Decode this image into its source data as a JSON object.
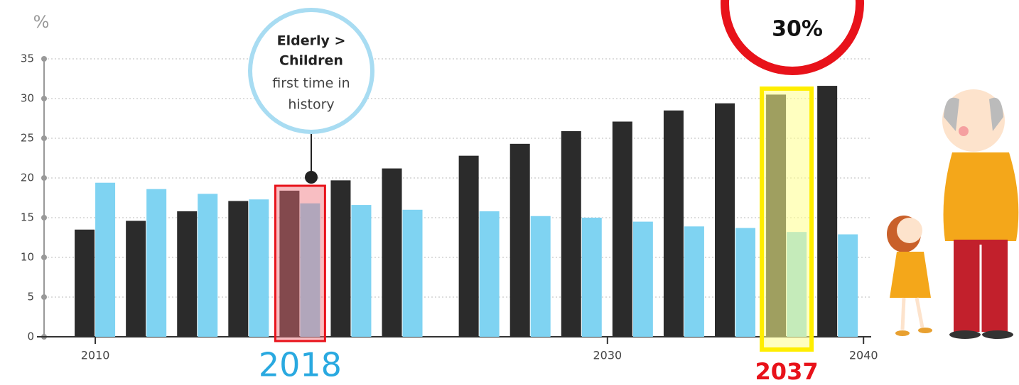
{
  "chart_data": {
    "type": "bar",
    "y_label": "%",
    "x": [
      2010,
      2012,
      2014,
      2016,
      2018,
      2020,
      2022,
      2025,
      2027,
      2029,
      2031,
      2033,
      2035,
      2037,
      2039
    ],
    "series": [
      {
        "color": "#2b2b2b",
        "values": [
          13.5,
          14.6,
          15.8,
          17.1,
          18.4,
          19.7,
          21.2,
          22.8,
          24.3,
          25.9,
          27.1,
          28.5,
          29.4,
          30.5,
          31.6
        ]
      },
      {
        "color": "#7fd3f2",
        "values": [
          19.4,
          18.6,
          18.0,
          17.3,
          16.8,
          16.6,
          16.0,
          15.8,
          15.2,
          15.0,
          14.5,
          13.9,
          13.7,
          13.2,
          12.9
        ]
      }
    ],
    "xlim": [
      2008,
      2040.3
    ],
    "xticks": [
      2010,
      2030,
      2040
    ],
    "ylim": [
      0,
      35
    ],
    "yticks": [
      0,
      5,
      10,
      15,
      20,
      25,
      30,
      35
    ],
    "grid": true,
    "highlights": [
      {
        "label": "2018",
        "x": 2018,
        "color": "#e8121a",
        "fill": "rgba(240,110,120,0.45)",
        "label_color": "#29a9e0"
      },
      {
        "label": "2037",
        "x": 2037,
        "color": "#ffee00",
        "fill": "rgba(255,255,140,0.55)",
        "label_color": "#e8121a"
      }
    ],
    "callout": [
      "Elderly >",
      "Children",
      "first time in",
      "history"
    ],
    "badge": "30%"
  }
}
